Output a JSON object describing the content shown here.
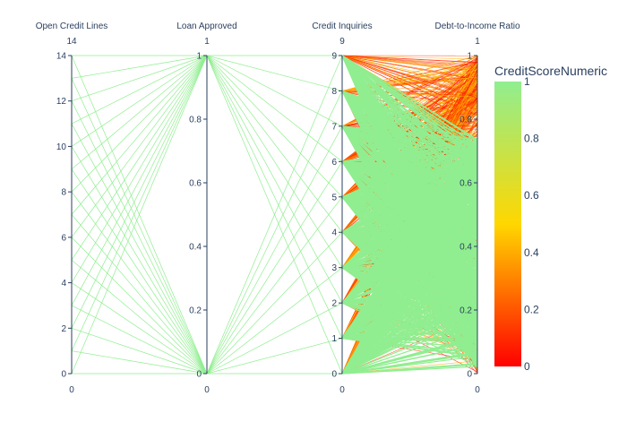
{
  "chart_data": {
    "type": "parallel_coordinates",
    "dimensions": [
      {
        "label": "Open Credit Lines",
        "range": [
          0,
          14
        ],
        "ticks": [
          0,
          2,
          4,
          6,
          8,
          10,
          12,
          14
        ],
        "top_label": "14",
        "bottom_label": "0"
      },
      {
        "label": "Loan Approved",
        "range": [
          0,
          1
        ],
        "ticks": [
          0,
          0.2,
          0.4,
          0.6,
          0.8,
          1
        ],
        "top_label": "1",
        "bottom_label": "0"
      },
      {
        "label": "Credit Inquiries",
        "range": [
          0,
          9
        ],
        "ticks": [
          0,
          1,
          2,
          3,
          4,
          5,
          6,
          7,
          8,
          9
        ],
        "top_label": "9",
        "bottom_label": "0"
      },
      {
        "label": "Debt-to-Income Ratio",
        "range": [
          0,
          1
        ],
        "ticks": [
          0,
          0.2,
          0.4,
          0.6,
          0.8,
          1
        ],
        "top_label": "1",
        "bottom_label": "0"
      }
    ],
    "color_variable": "CreditScoreNumeric",
    "colorscale": [
      [
        0,
        "#ff0000"
      ],
      [
        0.5,
        "#ffd700"
      ],
      [
        1,
        "#90ee90"
      ]
    ],
    "colorbar_ticks": [
      0,
      0.2,
      0.4,
      0.6,
      0.8,
      1
    ],
    "colorbar_tick_labels": [
      "0",
      "0.2",
      "0.4",
      "0.6",
      "0.8",
      "1"
    ],
    "open_credit_lines_values": [
      0,
      1,
      2,
      3,
      4,
      5,
      6,
      7,
      8,
      9,
      10,
      11,
      12,
      13,
      14
    ],
    "loan_approved_values": [
      0,
      1
    ],
    "credit_inquiries_values": [
      0,
      1,
      2,
      3,
      4,
      5,
      6,
      7,
      8,
      9
    ]
  }
}
